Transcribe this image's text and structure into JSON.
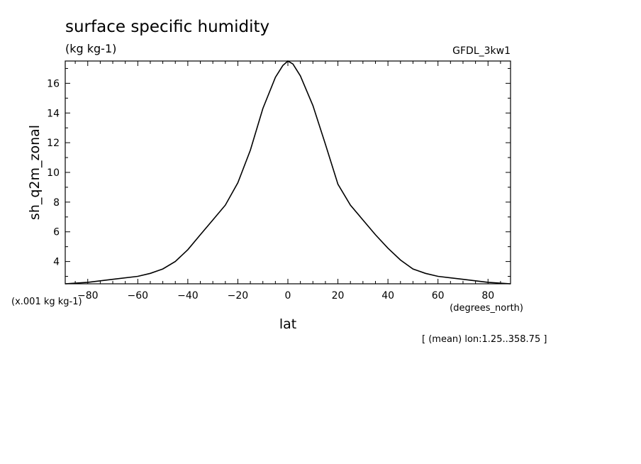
{
  "chart_data": {
    "type": "line",
    "title": "surface specific humidity",
    "units": "(kg kg-1)",
    "model": "GFDL_3kw1",
    "ylabel": "sh_q2m_zonal",
    "yscale_note": "(x.001 kg kg-1)",
    "xlabel": "lat",
    "xunits": "(degrees_north)",
    "footnote": "[ (mean) lon:1.25..358.75 ]",
    "xlim": [
      -89,
      89
    ],
    "ylim": [
      2.5,
      17.5
    ],
    "x_ticks": [
      -80,
      -60,
      -40,
      -20,
      0,
      20,
      40,
      60,
      80
    ],
    "y_ticks": [
      4,
      6,
      8,
      10,
      12,
      14,
      16
    ],
    "grid": false,
    "series": [
      {
        "x": [
          -89,
          -80,
          -70,
          -60,
          -55,
          -50,
          -45,
          -40,
          -35,
          -30,
          -25,
          -20,
          -15,
          -10,
          -5,
          -2,
          0,
          2,
          5,
          10,
          15,
          20,
          25,
          30,
          35,
          40,
          45,
          50,
          55,
          60,
          70,
          80,
          89
        ],
        "values": [
          2.5,
          2.6,
          2.8,
          3.0,
          3.2,
          3.5,
          4.0,
          4.8,
          5.8,
          6.8,
          7.8,
          9.3,
          11.5,
          14.3,
          16.4,
          17.2,
          17.5,
          17.3,
          16.5,
          14.5,
          11.9,
          9.2,
          7.8,
          6.8,
          5.8,
          4.9,
          4.1,
          3.5,
          3.2,
          3.0,
          2.8,
          2.6,
          2.5
        ]
      }
    ]
  }
}
